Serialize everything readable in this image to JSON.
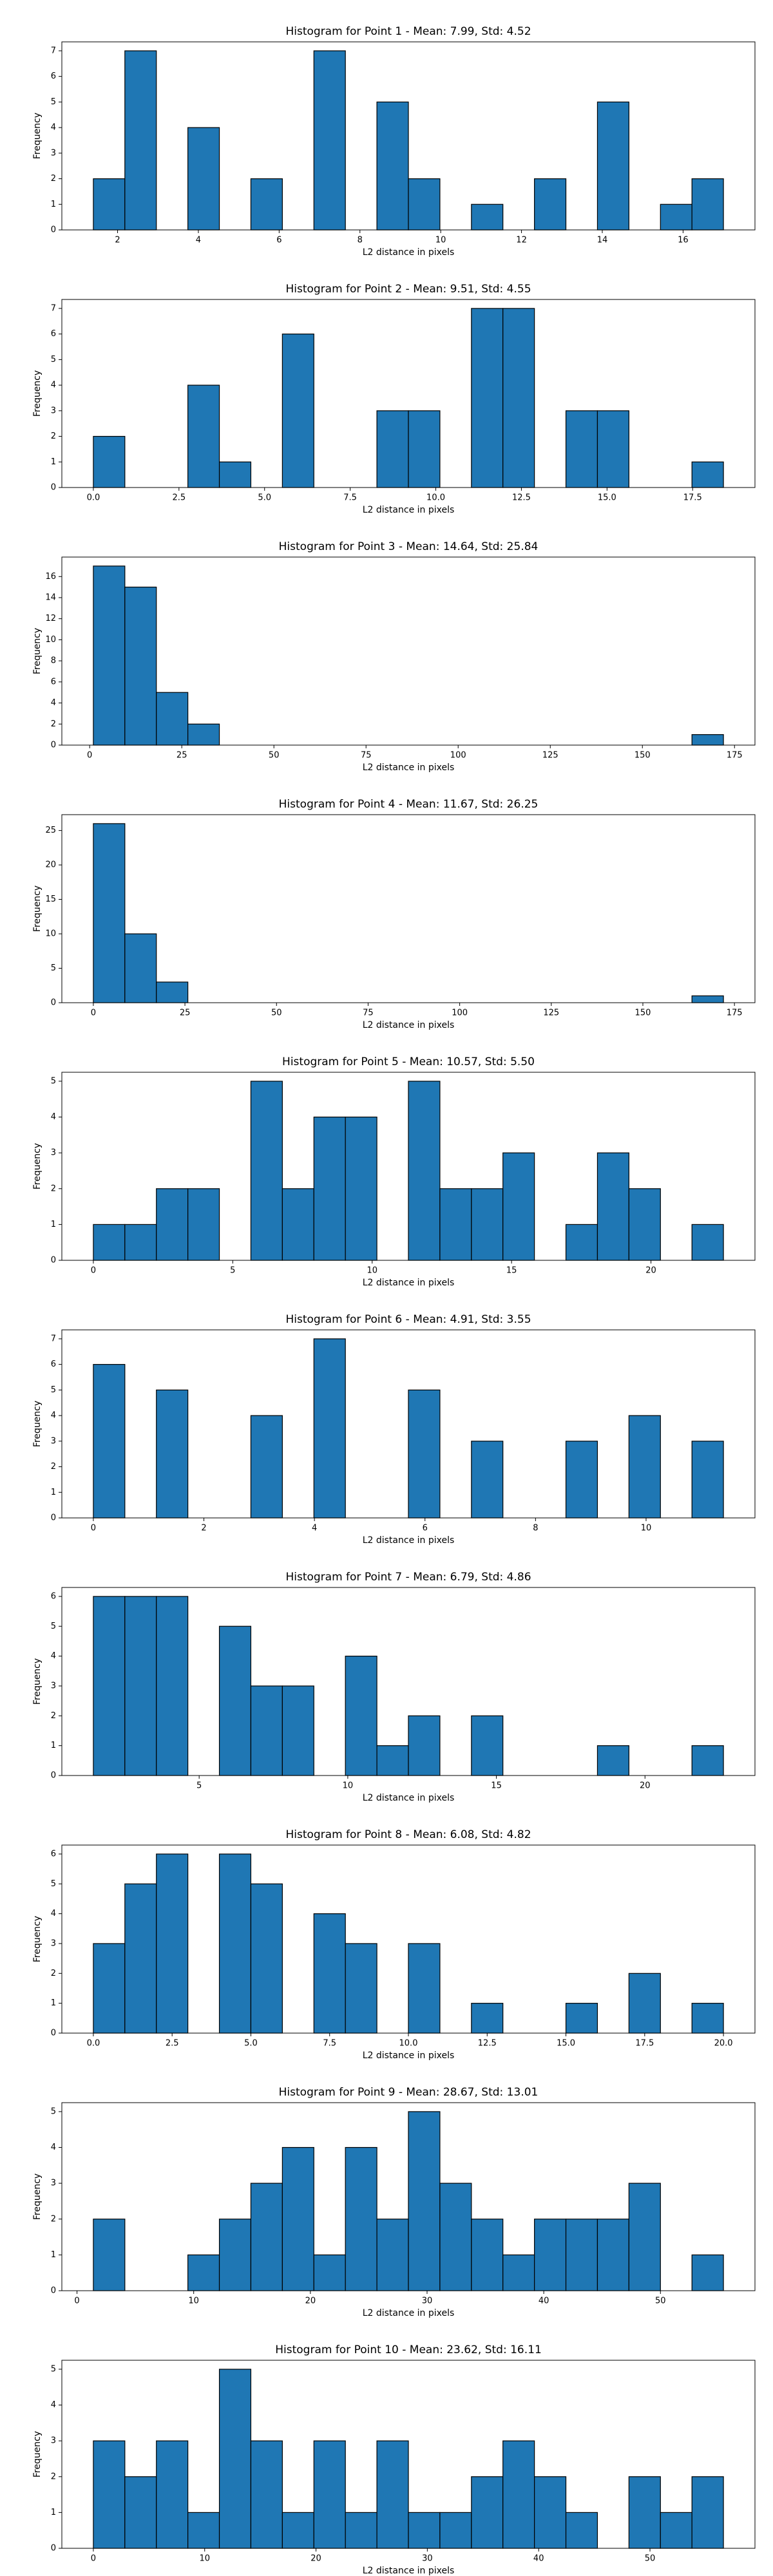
{
  "chart_data": [
    {
      "type": "histogram",
      "title": "Histogram for Point 1 - Mean: 7.99, Std: 4.52",
      "x_label": "L2 distance in pixels",
      "y_label": "Frequency",
      "color": "#1f77b4",
      "edgecolor": "#000000",
      "bins": [
        1.4,
        2.18,
        2.96,
        3.74,
        4.52,
        5.3,
        6.08,
        6.86,
        7.64,
        8.42,
        9.2,
        9.98,
        10.76,
        11.54,
        12.32,
        13.1,
        13.88,
        14.66,
        15.44,
        16.22,
        17.0
      ],
      "values": [
        2,
        7,
        0,
        4,
        0,
        2,
        0,
        7,
        0,
        5,
        2,
        0,
        1,
        0,
        2,
        0,
        5,
        0,
        1,
        2
      ],
      "xlim": [
        0.62,
        17.78
      ],
      "xticks": [
        2,
        4,
        6,
        8,
        10,
        12,
        14,
        16
      ],
      "ylim": [
        0,
        7.35
      ],
      "yticks": [
        0,
        1,
        2,
        3,
        4,
        5,
        6,
        7
      ]
    },
    {
      "type": "histogram",
      "title": "Histogram for Point 2 - Mean: 9.51, Std: 4.55",
      "x_label": "L2 distance in pixels",
      "y_label": "Frequency",
      "color": "#1f77b4",
      "edgecolor": "#000000",
      "bins": [
        0,
        0.92,
        1.84,
        2.76,
        3.68,
        4.6,
        5.52,
        6.44,
        7.36,
        8.28,
        9.2,
        10.12,
        11.04,
        11.96,
        12.88,
        13.8,
        14.72,
        15.64,
        16.56,
        17.48,
        18.4
      ],
      "values": [
        2,
        0,
        0,
        4,
        1,
        0,
        6,
        0,
        0,
        3,
        3,
        0,
        7,
        7,
        0,
        3,
        3,
        0,
        0,
        1
      ],
      "xlim": [
        -0.92,
        19.32
      ],
      "xticks": [
        {
          "value": 0,
          "label": "0.0"
        },
        {
          "value": 2.5,
          "label": "2.5"
        },
        {
          "value": 5,
          "label": "5.0"
        },
        {
          "value": 7.5,
          "label": "7.5"
        },
        {
          "value": 10,
          "label": "10.0"
        },
        {
          "value": 12.5,
          "label": "12.5"
        },
        {
          "value": 15,
          "label": "15.0"
        },
        {
          "value": 17.5,
          "label": "17.5"
        }
      ],
      "ylim": [
        0,
        7.35
      ],
      "yticks": [
        0,
        1,
        2,
        3,
        4,
        5,
        6,
        7
      ]
    },
    {
      "type": "histogram",
      "title": "Histogram for Point 3 - Mean: 14.64, Std: 25.84",
      "x_label": "L2 distance in pixels",
      "y_label": "Frequency",
      "color": "#1f77b4",
      "edgecolor": "#000000",
      "bins": [
        1,
        9.55,
        18.1,
        26.65,
        35.2,
        43.75,
        52.3,
        60.85,
        69.4,
        77.95,
        86.5,
        95.05,
        103.6,
        112.15,
        120.7,
        129.25,
        137.8,
        146.35,
        154.9,
        163.45,
        172
      ],
      "values": [
        17,
        15,
        5,
        2,
        0,
        0,
        0,
        0,
        0,
        0,
        0,
        0,
        0,
        0,
        0,
        0,
        0,
        0,
        0,
        1
      ],
      "xlim": [
        -7.55,
        180.55
      ],
      "xticks": [
        0,
        25,
        50,
        75,
        100,
        125,
        150,
        175
      ],
      "ylim": [
        0,
        17.85
      ],
      "yticks": [
        0,
        2,
        4,
        6,
        8,
        10,
        12,
        14,
        16
      ]
    },
    {
      "type": "histogram",
      "title": "Histogram for Point 4 - Mean: 11.67, Std: 26.25",
      "x_label": "L2 distance in pixels",
      "y_label": "Frequency",
      "color": "#1f77b4",
      "edgecolor": "#000000",
      "bins": [
        0,
        8.6,
        17.2,
        25.8,
        34.4,
        43,
        51.6,
        60.2,
        68.8,
        77.4,
        86,
        94.6,
        103.2,
        111.8,
        120.4,
        129,
        137.6,
        146.2,
        154.8,
        163.4,
        172
      ],
      "values": [
        26,
        10,
        3,
        0,
        0,
        0,
        0,
        0,
        0,
        0,
        0,
        0,
        0,
        0,
        0,
        0,
        0,
        0,
        0,
        1
      ],
      "xlim": [
        -8.6,
        180.6
      ],
      "xticks": [
        0,
        25,
        50,
        75,
        100,
        125,
        150,
        175
      ],
      "ylim": [
        0,
        27.3
      ],
      "yticks": [
        0,
        5,
        10,
        15,
        20,
        25
      ]
    },
    {
      "type": "histogram",
      "title": "Histogram for Point 5 - Mean: 10.57, Std: 5.50",
      "x_label": "L2 distance in pixels",
      "y_label": "Frequency",
      "color": "#1f77b4",
      "edgecolor": "#000000",
      "bins": [
        0,
        1.13,
        2.26,
        3.39,
        4.52,
        5.65,
        6.78,
        7.91,
        9.04,
        10.17,
        11.3,
        12.43,
        13.56,
        14.69,
        15.82,
        16.95,
        18.08,
        19.21,
        20.34,
        21.47,
        22.6
      ],
      "values": [
        1,
        1,
        2,
        2,
        0,
        5,
        2,
        4,
        4,
        0,
        5,
        2,
        2,
        3,
        0,
        1,
        3,
        2,
        0,
        1
      ],
      "xlim": [
        -1.13,
        23.73
      ],
      "xticks": [
        0,
        5,
        10,
        15,
        20
      ],
      "ylim": [
        0,
        5.25
      ],
      "yticks": [
        0,
        1,
        2,
        3,
        4,
        5
      ]
    },
    {
      "type": "histogram",
      "title": "Histogram for Point 6 - Mean: 4.91, Std: 3.55",
      "x_label": "L2 distance in pixels",
      "y_label": "Frequency",
      "color": "#1f77b4",
      "edgecolor": "#000000",
      "bins": [
        0,
        0.57,
        1.14,
        1.71,
        2.28,
        2.85,
        3.42,
        3.99,
        4.56,
        5.13,
        5.7,
        6.27,
        6.84,
        7.41,
        7.98,
        8.55,
        9.12,
        9.69,
        10.26,
        10.83,
        11.4
      ],
      "values": [
        6,
        0,
        5,
        0,
        0,
        4,
        0,
        7,
        0,
        0,
        5,
        0,
        3,
        0,
        0,
        3,
        0,
        4,
        0,
        3
      ],
      "xlim": [
        -0.57,
        11.97
      ],
      "xticks": [
        0,
        2,
        4,
        6,
        8,
        10
      ],
      "ylim": [
        0,
        7.35
      ],
      "yticks": [
        0,
        1,
        2,
        3,
        4,
        5,
        6,
        7
      ]
    },
    {
      "type": "histogram",
      "title": "Histogram for Point 7 - Mean: 6.79, Std: 4.86",
      "x_label": "L2 distance in pixels",
      "y_label": "Frequency",
      "color": "#1f77b4",
      "edgecolor": "#000000",
      "bins": [
        1.44,
        2.5,
        3.56,
        4.62,
        5.68,
        6.74,
        7.8,
        8.86,
        9.92,
        10.98,
        12.04,
        13.1,
        14.16,
        15.22,
        16.28,
        17.34,
        18.4,
        19.46,
        20.52,
        21.58,
        22.64
      ],
      "values": [
        6,
        6,
        6,
        0,
        5,
        3,
        3,
        0,
        4,
        1,
        2,
        0,
        2,
        0,
        0,
        0,
        1,
        0,
        0,
        1
      ],
      "xlim": [
        0.38,
        23.7
      ],
      "xticks": [
        5,
        10,
        15,
        20
      ],
      "ylim": [
        0,
        6.3
      ],
      "yticks": [
        0,
        1,
        2,
        3,
        4,
        5,
        6
      ]
    },
    {
      "type": "histogram",
      "title": "Histogram for Point 8 - Mean: 6.08, Std: 4.82",
      "x_label": "L2 distance in pixels",
      "y_label": "Frequency",
      "color": "#1f77b4",
      "edgecolor": "#000000",
      "bins": [
        0,
        1,
        2,
        3,
        4,
        5,
        6,
        7,
        8,
        9,
        10,
        11,
        12,
        13,
        14,
        15,
        16,
        17,
        18,
        19,
        20
      ],
      "values": [
        3,
        5,
        6,
        0,
        6,
        5,
        0,
        4,
        3,
        0,
        3,
        0,
        1,
        0,
        0,
        1,
        0,
        2,
        0,
        1
      ],
      "xlim": [
        -1,
        21
      ],
      "xticks": [
        {
          "value": 0,
          "label": "0.0"
        },
        {
          "value": 2.5,
          "label": "2.5"
        },
        {
          "value": 5,
          "label": "5.0"
        },
        {
          "value": 7.5,
          "label": "7.5"
        },
        {
          "value": 10,
          "label": "10.0"
        },
        {
          "value": 12.5,
          "label": "12.5"
        },
        {
          "value": 15,
          "label": "15.0"
        },
        {
          "value": 17.5,
          "label": "17.5"
        },
        {
          "value": 20,
          "label": "20.0"
        }
      ],
      "ylim": [
        0,
        6.3
      ],
      "yticks": [
        0,
        1,
        2,
        3,
        4,
        5,
        6
      ]
    },
    {
      "type": "histogram",
      "title": "Histogram for Point 9 - Mean: 28.67, Std: 13.01",
      "x_label": "L2 distance in pixels",
      "y_label": "Frequency",
      "color": "#1f77b4",
      "edgecolor": "#000000",
      "bins": [
        1.4,
        4.1,
        6.8,
        9.5,
        12.2,
        14.9,
        17.6,
        20.3,
        23,
        25.7,
        28.4,
        31.1,
        33.8,
        36.5,
        39.2,
        41.9,
        44.6,
        47.3,
        50,
        52.7,
        55.4
      ],
      "values": [
        2,
        0,
        0,
        1,
        2,
        3,
        4,
        1,
        4,
        2,
        5,
        3,
        2,
        1,
        2,
        2,
        2,
        3,
        0,
        1
      ],
      "xlim": [
        -1.3,
        58.1
      ],
      "xticks": [
        0,
        10,
        20,
        30,
        40,
        50
      ],
      "ylim": [
        0,
        5.25
      ],
      "yticks": [
        0,
        1,
        2,
        3,
        4,
        5
      ]
    },
    {
      "type": "histogram",
      "title": "Histogram for Point 10 - Mean: 23.62, Std: 16.11",
      "x_label": "L2 distance in pixels",
      "y_label": "Frequency",
      "color": "#1f77b4",
      "edgecolor": "#000000",
      "bins": [
        0,
        2.83,
        5.66,
        8.49,
        11.32,
        14.15,
        16.98,
        19.81,
        22.64,
        25.47,
        28.3,
        31.13,
        33.96,
        36.79,
        39.62,
        42.45,
        45.28,
        48.11,
        50.94,
        53.77,
        56.6
      ],
      "values": [
        3,
        2,
        3,
        1,
        5,
        3,
        1,
        3,
        1,
        3,
        1,
        1,
        2,
        3,
        2,
        1,
        0,
        2,
        1,
        2
      ],
      "xlim": [
        -2.83,
        59.43
      ],
      "xticks": [
        0,
        10,
        20,
        30,
        40,
        50
      ],
      "ylim": [
        0,
        5.25
      ],
      "yticks": [
        0,
        1,
        2,
        3,
        4,
        5
      ]
    }
  ]
}
